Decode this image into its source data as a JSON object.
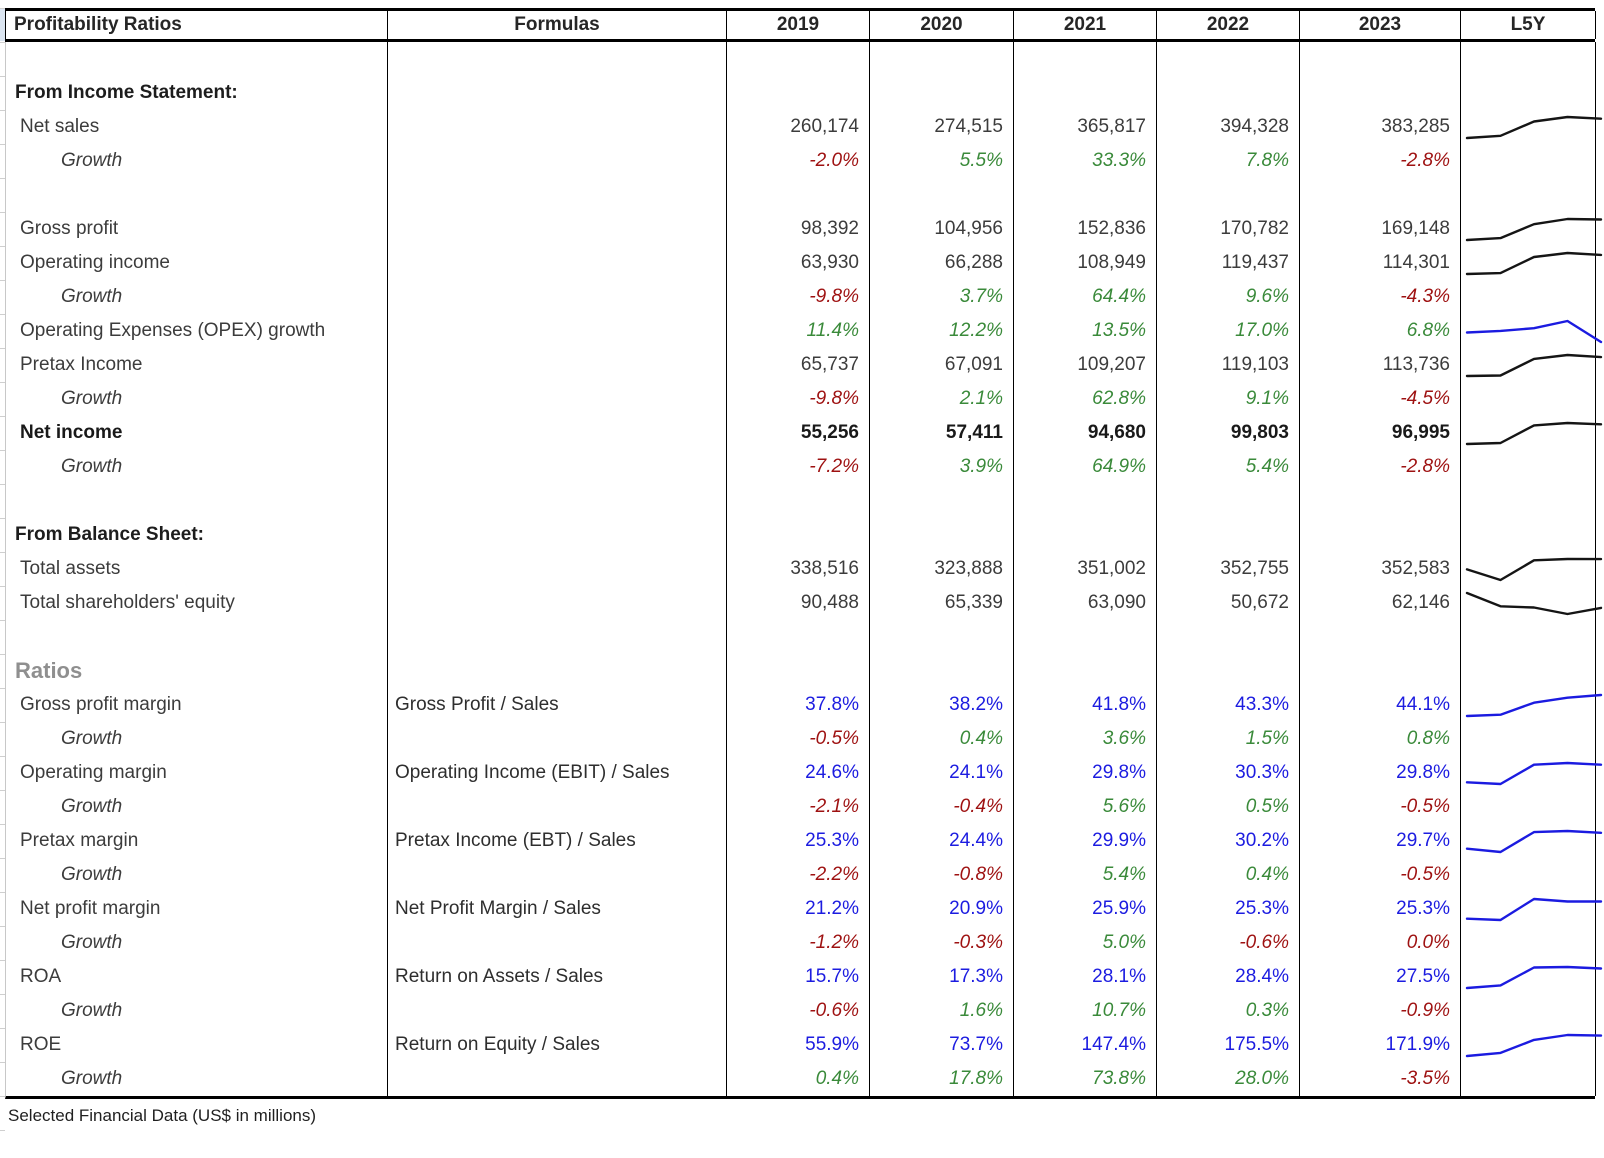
{
  "header": {
    "columns": [
      "Profitability Ratios",
      "Formulas",
      "2019",
      "2020",
      "2021",
      "2022",
      "2023",
      "L5Y"
    ]
  },
  "footer": {
    "note": "Selected Financial Data (US$ in millions)"
  },
  "colors": {
    "negative": "#9e1111",
    "positive": "#3a8a3a",
    "ratio": "#1c1ce0",
    "number": "#3c3c3c",
    "ratios_header": "#8f8f8f",
    "spark_black": "#151515",
    "spark_blue": "#1b1be0"
  },
  "rows": [
    {
      "type": "blank"
    },
    {
      "type": "section",
      "label": "From Income Statement:"
    },
    {
      "type": "data",
      "style": "number",
      "label": "Net sales",
      "values": [
        "260,174",
        "274,515",
        "365,817",
        "394,328",
        "383,285"
      ],
      "spark": 0
    },
    {
      "type": "data",
      "style": "growth",
      "label": "Growth",
      "values": [
        "-2.0%",
        "5.5%",
        "33.3%",
        "7.8%",
        "-2.8%"
      ],
      "colors": [
        "neg",
        "pos",
        "pos",
        "pos",
        "neg"
      ]
    },
    {
      "type": "blank"
    },
    {
      "type": "data",
      "style": "number",
      "label": "Gross profit",
      "values": [
        "98,392",
        "104,956",
        "152,836",
        "170,782",
        "169,148"
      ],
      "spark": 1
    },
    {
      "type": "data",
      "style": "number",
      "label": "Operating income",
      "values": [
        "63,930",
        "66,288",
        "108,949",
        "119,437",
        "114,301"
      ],
      "spark": 2
    },
    {
      "type": "data",
      "style": "growth",
      "label": "Growth",
      "values": [
        "-9.8%",
        "3.7%",
        "64.4%",
        "9.6%",
        "-4.3%"
      ],
      "colors": [
        "neg",
        "pos",
        "pos",
        "pos",
        "neg"
      ]
    },
    {
      "type": "data",
      "style": "opex",
      "label": "Operating Expenses (OPEX) growth",
      "values": [
        "11.4%",
        "12.2%",
        "13.5%",
        "17.0%",
        "6.8%"
      ],
      "colors": [
        "pos",
        "pos",
        "pos",
        "pos",
        "pos"
      ],
      "spark": 3
    },
    {
      "type": "data",
      "style": "number",
      "label": "Pretax Income",
      "values": [
        "65,737",
        "67,091",
        "109,207",
        "119,103",
        "113,736"
      ],
      "spark": 4
    },
    {
      "type": "data",
      "style": "growth",
      "label": "Growth",
      "values": [
        "-9.8%",
        "2.1%",
        "62.8%",
        "9.1%",
        "-4.5%"
      ],
      "colors": [
        "neg",
        "pos",
        "pos",
        "pos",
        "neg"
      ]
    },
    {
      "type": "data",
      "style": "number_bold",
      "label": "Net income",
      "values": [
        "55,256",
        "57,411",
        "94,680",
        "99,803",
        "96,995"
      ],
      "spark": 5
    },
    {
      "type": "data",
      "style": "growth",
      "label": "Growth",
      "values": [
        "-7.2%",
        "3.9%",
        "64.9%",
        "5.4%",
        "-2.8%"
      ],
      "colors": [
        "neg",
        "pos",
        "pos",
        "pos",
        "neg"
      ]
    },
    {
      "type": "blank"
    },
    {
      "type": "section",
      "label": "From Balance Sheet:"
    },
    {
      "type": "data",
      "style": "number",
      "label": "Total assets",
      "values": [
        "338,516",
        "323,888",
        "351,002",
        "352,755",
        "352,583"
      ],
      "spark": 6
    },
    {
      "type": "data",
      "style": "number",
      "label": "Total shareholders' equity",
      "values": [
        "90,488",
        "65,339",
        "63,090",
        "50,672",
        "62,146"
      ],
      "spark": 7
    },
    {
      "type": "blank"
    },
    {
      "type": "ratios_header",
      "label": "Ratios"
    },
    {
      "type": "data",
      "style": "ratio",
      "label": "Gross profit margin",
      "formula": "Gross Profit / Sales",
      "values": [
        "37.8%",
        "38.2%",
        "41.8%",
        "43.3%",
        "44.1%"
      ],
      "spark": 8
    },
    {
      "type": "data",
      "style": "growth",
      "label": "Growth",
      "values": [
        "-0.5%",
        "0.4%",
        "3.6%",
        "1.5%",
        "0.8%"
      ],
      "colors": [
        "neg",
        "pos",
        "pos",
        "pos",
        "pos"
      ]
    },
    {
      "type": "data",
      "style": "ratio",
      "label": "Operating margin",
      "formula": "Operating Income (EBIT) / Sales",
      "values": [
        "24.6%",
        "24.1%",
        "29.8%",
        "30.3%",
        "29.8%"
      ],
      "spark": 9
    },
    {
      "type": "data",
      "style": "growth",
      "label": "Growth",
      "values": [
        "-2.1%",
        "-0.4%",
        "5.6%",
        "0.5%",
        "-0.5%"
      ],
      "colors": [
        "neg",
        "neg",
        "pos",
        "pos",
        "neg"
      ]
    },
    {
      "type": "data",
      "style": "ratio",
      "label": "Pretax margin",
      "formula": "Pretax Income (EBT) / Sales",
      "values": [
        "25.3%",
        "24.4%",
        "29.9%",
        "30.2%",
        "29.7%"
      ],
      "spark": 10
    },
    {
      "type": "data",
      "style": "growth",
      "label": "Growth",
      "values": [
        "-2.2%",
        "-0.8%",
        "5.4%",
        "0.4%",
        "-0.5%"
      ],
      "colors": [
        "neg",
        "neg",
        "pos",
        "pos",
        "neg"
      ]
    },
    {
      "type": "data",
      "style": "ratio",
      "label": "Net profit margin",
      "formula": "Net Profit Margin / Sales",
      "values": [
        "21.2%",
        "20.9%",
        "25.9%",
        "25.3%",
        "25.3%"
      ],
      "spark": 11
    },
    {
      "type": "data",
      "style": "growth",
      "label": "Growth",
      "values": [
        "-1.2%",
        "-0.3%",
        "5.0%",
        "-0.6%",
        "0.0%"
      ],
      "colors": [
        "neg",
        "neg",
        "pos",
        "neg",
        "neg"
      ]
    },
    {
      "type": "data",
      "style": "ratio",
      "label": "ROA",
      "formula": "Return on Assets / Sales",
      "values": [
        "15.7%",
        "17.3%",
        "28.1%",
        "28.4%",
        "27.5%"
      ],
      "spark": 12
    },
    {
      "type": "data",
      "style": "growth",
      "label": "Growth",
      "values": [
        "-0.6%",
        "1.6%",
        "10.7%",
        "0.3%",
        "-0.9%"
      ],
      "colors": [
        "neg",
        "pos",
        "pos",
        "pos",
        "neg"
      ]
    },
    {
      "type": "data",
      "style": "ratio",
      "label": "ROE",
      "formula": "Return on Equity / Sales",
      "values": [
        "55.9%",
        "73.7%",
        "147.4%",
        "175.5%",
        "171.9%"
      ],
      "spark": 13
    },
    {
      "type": "data",
      "style": "growth",
      "label": "Growth",
      "values": [
        "0.4%",
        "17.8%",
        "73.8%",
        "28.0%",
        "-3.5%"
      ],
      "colors": [
        "pos",
        "pos",
        "pos",
        "pos",
        "neg"
      ]
    }
  ],
  "chart_data": {
    "type": "line",
    "x": [
      2019,
      2020,
      2021,
      2022,
      2023
    ],
    "title": "L5Y sparklines",
    "legend_position": "none",
    "grid": false,
    "series": [
      {
        "name": "net-sales",
        "color": "black",
        "values": [
          260174,
          274515,
          365817,
          394328,
          383285
        ]
      },
      {
        "name": "gross-profit",
        "color": "black",
        "values": [
          98392,
          104956,
          152836,
          170782,
          169148
        ]
      },
      {
        "name": "operating-income",
        "color": "black",
        "values": [
          63930,
          66288,
          108949,
          119437,
          114301
        ]
      },
      {
        "name": "opex-growth",
        "color": "blue",
        "values": [
          11.4,
          12.2,
          13.5,
          17.0,
          6.8
        ]
      },
      {
        "name": "pretax-income",
        "color": "black",
        "values": [
          65737,
          67091,
          109207,
          119103,
          113736
        ]
      },
      {
        "name": "net-income",
        "color": "black",
        "values": [
          55256,
          57411,
          94680,
          99803,
          96995
        ]
      },
      {
        "name": "total-assets",
        "color": "black",
        "values": [
          338516,
          323888,
          351002,
          352755,
          352583
        ]
      },
      {
        "name": "total-shareholders-equity",
        "color": "black",
        "values": [
          90488,
          65339,
          63090,
          50672,
          62146
        ]
      },
      {
        "name": "gross-profit-margin",
        "color": "blue",
        "values": [
          37.8,
          38.2,
          41.8,
          43.3,
          44.1
        ]
      },
      {
        "name": "operating-margin",
        "color": "blue",
        "values": [
          24.6,
          24.1,
          29.8,
          30.3,
          29.8
        ]
      },
      {
        "name": "pretax-margin",
        "color": "blue",
        "values": [
          25.3,
          24.4,
          29.9,
          30.2,
          29.7
        ]
      },
      {
        "name": "net-profit-margin",
        "color": "blue",
        "values": [
          21.2,
          20.9,
          25.9,
          25.3,
          25.3
        ]
      },
      {
        "name": "roa",
        "color": "blue",
        "values": [
          15.7,
          17.3,
          28.1,
          28.4,
          27.5
        ]
      },
      {
        "name": "roe",
        "color": "blue",
        "values": [
          55.9,
          73.7,
          147.4,
          175.5,
          171.9
        ]
      }
    ]
  }
}
